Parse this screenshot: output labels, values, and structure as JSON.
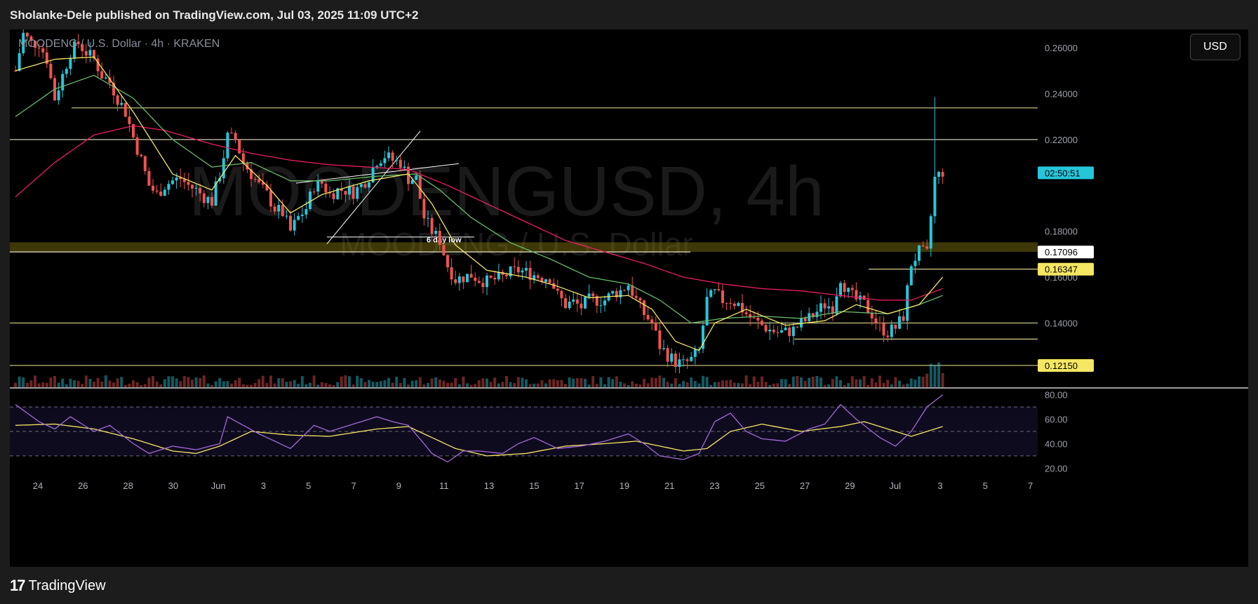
{
  "header": {
    "published_by": "Sholanke-Dele published on TradingView.com, Jul 03, 2025 11:09 UTC+2"
  },
  "symbol": {
    "legend": "MOODENG / U.S. Dollar · 4h · KRAKEN",
    "watermark_main": "MOODENGUSD, 4h",
    "watermark_sub": "MOODENG / U.S. Dollar"
  },
  "currency_button": "USD",
  "footer": {
    "brand": "TradingView",
    "logo_mark": "17"
  },
  "colors": {
    "up": "#26c6da",
    "down": "#ef5350",
    "ema_fast": "#f5e663",
    "ema_mid": "#66bb6a",
    "ema_slow": "#e91e63",
    "level_line": "#d8d08a",
    "rsi": "#a06bd6",
    "rsi_ma": "#f5e663"
  },
  "chart_data": {
    "type": "candlestick",
    "title": "MOODENGUSD, 4h",
    "exchange": "KRAKEN",
    "price_axis": {
      "ticks": [
        "0.26000",
        "0.24000",
        "0.22000",
        "0.18000",
        "0.16000",
        "0.14000"
      ],
      "ylim": [
        0.112,
        0.268
      ]
    },
    "date_axis": {
      "ticks": [
        "24",
        "26",
        "28",
        "30",
        "Jun",
        "3",
        "5",
        "7",
        "9",
        "11",
        "13",
        "15",
        "17",
        "19",
        "21",
        "23",
        "25",
        "27",
        "29",
        "Jul",
        "3",
        "5",
        "7"
      ]
    },
    "price_badges": [
      {
        "label": "02:50:51",
        "price": 0.2055,
        "style": "cyan"
      },
      {
        "label": "0.17096",
        "price": 0.17096,
        "style": "white"
      },
      {
        "label": "0.16347",
        "price": 0.16347,
        "style": "yellow"
      },
      {
        "label": "0.12150",
        "price": 0.1215,
        "style": "yellow"
      }
    ],
    "horizontal_levels": [
      0.2338,
      0.22,
      0.171,
      0.1635,
      0.14,
      0.133,
      0.1215
    ],
    "support_zone": [
      0.171,
      0.1752
    ],
    "annotations": [
      {
        "text": "6 day low"
      }
    ],
    "close_path_anchors": [
      [
        0,
        0.25
      ],
      [
        2,
        0.266
      ],
      [
        4,
        0.262
      ],
      [
        6,
        0.262
      ],
      [
        8,
        0.255
      ],
      [
        10,
        0.238
      ],
      [
        12,
        0.248
      ],
      [
        14,
        0.258
      ],
      [
        16,
        0.262
      ],
      [
        18,
        0.258
      ],
      [
        20,
        0.255
      ],
      [
        22,
        0.248
      ],
      [
        24,
        0.245
      ],
      [
        26,
        0.238
      ],
      [
        28,
        0.232
      ],
      [
        30,
        0.221
      ],
      [
        32,
        0.211
      ],
      [
        34,
        0.2
      ],
      [
        36,
        0.196
      ],
      [
        38,
        0.2
      ],
      [
        40,
        0.202
      ],
      [
        42,
        0.203
      ],
      [
        44,
        0.2
      ],
      [
        46,
        0.198
      ],
      [
        48,
        0.195
      ],
      [
        50,
        0.193
      ],
      [
        52,
        0.205
      ],
      [
        54,
        0.221
      ],
      [
        56,
        0.22
      ],
      [
        58,
        0.21
      ],
      [
        60,
        0.205
      ],
      [
        62,
        0.2
      ],
      [
        64,
        0.196
      ],
      [
        66,
        0.19
      ],
      [
        68,
        0.188
      ],
      [
        70,
        0.18
      ],
      [
        72,
        0.186
      ],
      [
        74,
        0.19
      ],
      [
        76,
        0.2
      ],
      [
        78,
        0.201
      ],
      [
        80,
        0.196
      ],
      [
        82,
        0.198
      ],
      [
        84,
        0.198
      ],
      [
        86,
        0.197
      ],
      [
        88,
        0.2
      ],
      [
        90,
        0.204
      ],
      [
        92,
        0.211
      ],
      [
        94,
        0.213
      ],
      [
        96,
        0.211
      ],
      [
        98,
        0.21
      ],
      [
        100,
        0.203
      ],
      [
        102,
        0.203
      ],
      [
        104,
        0.186
      ],
      [
        106,
        0.18
      ],
      [
        108,
        0.176
      ],
      [
        110,
        0.165
      ],
      [
        112,
        0.159
      ],
      [
        114,
        0.16
      ],
      [
        116,
        0.161
      ],
      [
        118,
        0.159
      ],
      [
        120,
        0.158
      ],
      [
        122,
        0.159
      ],
      [
        124,
        0.16
      ],
      [
        126,
        0.162
      ],
      [
        128,
        0.163
      ],
      [
        130,
        0.162
      ],
      [
        132,
        0.161
      ],
      [
        134,
        0.16
      ],
      [
        136,
        0.16
      ],
      [
        138,
        0.152
      ],
      [
        140,
        0.148
      ],
      [
        142,
        0.149
      ],
      [
        144,
        0.147
      ],
      [
        146,
        0.15
      ],
      [
        148,
        0.15
      ],
      [
        150,
        0.15
      ],
      [
        152,
        0.153
      ],
      [
        154,
        0.154
      ],
      [
        156,
        0.157
      ],
      [
        158,
        0.15
      ],
      [
        160,
        0.144
      ],
      [
        162,
        0.14
      ],
      [
        164,
        0.13
      ],
      [
        166,
        0.126
      ],
      [
        168,
        0.123
      ],
      [
        170,
        0.122
      ],
      [
        172,
        0.124
      ],
      [
        174,
        0.128
      ],
      [
        176,
        0.15
      ],
      [
        178,
        0.153
      ],
      [
        180,
        0.15
      ],
      [
        182,
        0.15
      ],
      [
        184,
        0.148
      ],
      [
        186,
        0.144
      ],
      [
        188,
        0.141
      ],
      [
        190,
        0.139
      ],
      [
        192,
        0.137
      ],
      [
        194,
        0.136
      ],
      [
        196,
        0.136
      ],
      [
        198,
        0.137
      ],
      [
        200,
        0.14
      ],
      [
        202,
        0.142
      ],
      [
        204,
        0.145
      ],
      [
        206,
        0.148
      ],
      [
        208,
        0.147
      ],
      [
        210,
        0.16
      ],
      [
        212,
        0.153
      ],
      [
        214,
        0.15
      ],
      [
        216,
        0.148
      ],
      [
        218,
        0.144
      ],
      [
        220,
        0.138
      ],
      [
        222,
        0.136
      ],
      [
        224,
        0.138
      ],
      [
        226,
        0.143
      ],
      [
        228,
        0.166
      ],
      [
        230,
        0.171
      ],
      [
        232,
        0.17
      ],
      [
        234,
        0.203
      ],
      [
        236,
        0.206
      ]
    ],
    "ema_fast_anchors": [
      [
        0,
        0.25
      ],
      [
        10,
        0.255
      ],
      [
        20,
        0.256
      ],
      [
        30,
        0.232
      ],
      [
        40,
        0.205
      ],
      [
        50,
        0.198
      ],
      [
        56,
        0.213
      ],
      [
        64,
        0.2
      ],
      [
        70,
        0.188
      ],
      [
        78,
        0.196
      ],
      [
        90,
        0.202
      ],
      [
        100,
        0.205
      ],
      [
        106,
        0.192
      ],
      [
        112,
        0.174
      ],
      [
        120,
        0.163
      ],
      [
        130,
        0.16
      ],
      [
        138,
        0.156
      ],
      [
        146,
        0.151
      ],
      [
        156,
        0.152
      ],
      [
        162,
        0.146
      ],
      [
        168,
        0.132
      ],
      [
        174,
        0.128
      ],
      [
        178,
        0.14
      ],
      [
        186,
        0.146
      ],
      [
        196,
        0.139
      ],
      [
        206,
        0.141
      ],
      [
        214,
        0.148
      ],
      [
        222,
        0.144
      ],
      [
        230,
        0.148
      ],
      [
        236,
        0.16
      ]
    ],
    "ema_mid_anchors": [
      [
        0,
        0.23
      ],
      [
        10,
        0.242
      ],
      [
        20,
        0.248
      ],
      [
        30,
        0.238
      ],
      [
        40,
        0.22
      ],
      [
        50,
        0.208
      ],
      [
        60,
        0.21
      ],
      [
        70,
        0.202
      ],
      [
        80,
        0.202
      ],
      [
        92,
        0.204
      ],
      [
        102,
        0.205
      ],
      [
        108,
        0.198
      ],
      [
        116,
        0.186
      ],
      [
        126,
        0.175
      ],
      [
        136,
        0.168
      ],
      [
        146,
        0.16
      ],
      [
        156,
        0.157
      ],
      [
        164,
        0.15
      ],
      [
        172,
        0.14
      ],
      [
        180,
        0.142
      ],
      [
        190,
        0.143
      ],
      [
        200,
        0.142
      ],
      [
        210,
        0.145
      ],
      [
        222,
        0.144
      ],
      [
        230,
        0.148
      ],
      [
        236,
        0.152
      ]
    ],
    "ema_slow_anchors": [
      [
        0,
        0.195
      ],
      [
        10,
        0.21
      ],
      [
        20,
        0.222
      ],
      [
        30,
        0.226
      ],
      [
        38,
        0.224
      ],
      [
        50,
        0.218
      ],
      [
        60,
        0.214
      ],
      [
        70,
        0.211
      ],
      [
        80,
        0.209
      ],
      [
        90,
        0.208
      ],
      [
        100,
        0.207
      ],
      [
        110,
        0.2
      ],
      [
        120,
        0.192
      ],
      [
        130,
        0.184
      ],
      [
        140,
        0.176
      ],
      [
        150,
        0.171
      ],
      [
        160,
        0.166
      ],
      [
        170,
        0.16
      ],
      [
        180,
        0.157
      ],
      [
        190,
        0.155
      ],
      [
        200,
        0.154
      ],
      [
        210,
        0.152
      ],
      [
        220,
        0.15
      ],
      [
        228,
        0.15
      ],
      [
        236,
        0.155
      ]
    ],
    "rsi": {
      "ticks": [
        "80.00",
        "60.00",
        "40.00",
        "20.00"
      ],
      "ylim": [
        15,
        85
      ],
      "bands": [
        70,
        50,
        30
      ],
      "rsi_anchors": [
        [
          0,
          72
        ],
        [
          6,
          58
        ],
        [
          10,
          52
        ],
        [
          14,
          62
        ],
        [
          20,
          50
        ],
        [
          24,
          55
        ],
        [
          30,
          40
        ],
        [
          34,
          32
        ],
        [
          40,
          38
        ],
        [
          46,
          35
        ],
        [
          52,
          40
        ],
        [
          54,
          62
        ],
        [
          58,
          55
        ],
        [
          62,
          48
        ],
        [
          66,
          42
        ],
        [
          70,
          36
        ],
        [
          76,
          55
        ],
        [
          80,
          50
        ],
        [
          86,
          56
        ],
        [
          92,
          62
        ],
        [
          96,
          58
        ],
        [
          100,
          55
        ],
        [
          104,
          40
        ],
        [
          106,
          32
        ],
        [
          110,
          25
        ],
        [
          114,
          34
        ],
        [
          118,
          34
        ],
        [
          124,
          32
        ],
        [
          128,
          40
        ],
        [
          132,
          45
        ],
        [
          138,
          36
        ],
        [
          144,
          38
        ],
        [
          150,
          42
        ],
        [
          156,
          48
        ],
        [
          160,
          40
        ],
        [
          164,
          30
        ],
        [
          170,
          27
        ],
        [
          174,
          32
        ],
        [
          178,
          58
        ],
        [
          182,
          65
        ],
        [
          186,
          50
        ],
        [
          190,
          44
        ],
        [
          196,
          42
        ],
        [
          202,
          52
        ],
        [
          206,
          56
        ],
        [
          210,
          72
        ],
        [
          214,
          60
        ],
        [
          220,
          45
        ],
        [
          224,
          38
        ],
        [
          228,
          50
        ],
        [
          232,
          70
        ],
        [
          236,
          80
        ]
      ],
      "ma_anchors": [
        [
          0,
          55
        ],
        [
          10,
          56
        ],
        [
          20,
          52
        ],
        [
          30,
          44
        ],
        [
          40,
          34
        ],
        [
          46,
          32
        ],
        [
          52,
          38
        ],
        [
          60,
          50
        ],
        [
          70,
          47
        ],
        [
          80,
          46
        ],
        [
          92,
          52
        ],
        [
          100,
          54
        ],
        [
          106,
          45
        ],
        [
          112,
          36
        ],
        [
          120,
          30
        ],
        [
          130,
          32
        ],
        [
          140,
          38
        ],
        [
          150,
          40
        ],
        [
          158,
          42
        ],
        [
          164,
          38
        ],
        [
          170,
          34
        ],
        [
          176,
          36
        ],
        [
          182,
          50
        ],
        [
          190,
          56
        ],
        [
          200,
          50
        ],
        [
          210,
          54
        ],
        [
          216,
          58
        ],
        [
          222,
          52
        ],
        [
          228,
          46
        ],
        [
          236,
          54
        ]
      ]
    }
  }
}
